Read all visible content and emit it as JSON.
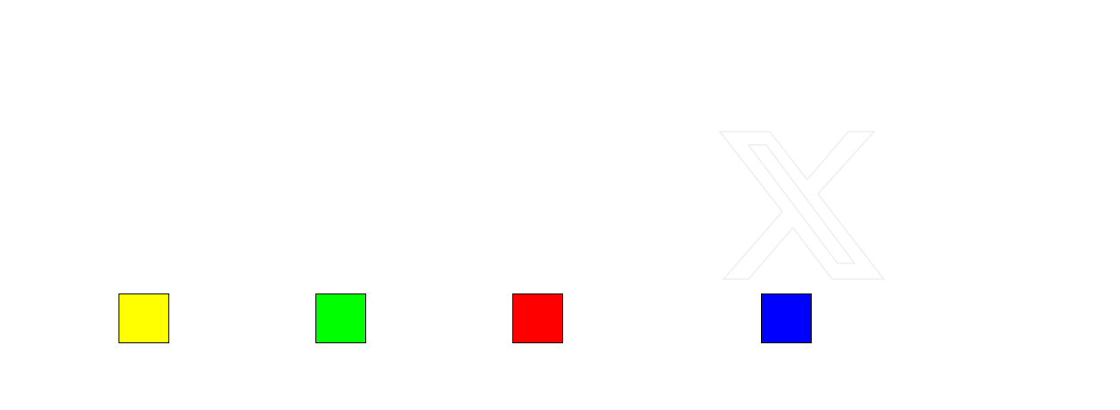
{
  "watermark": {
    "icon": "x-logo-icon",
    "color": "#eeeeee"
  },
  "swatches": [
    {
      "name": "yellow",
      "color": "#ffff00"
    },
    {
      "name": "green",
      "color": "#00ff00"
    },
    {
      "name": "red",
      "color": "#ff0000"
    },
    {
      "name": "blue",
      "color": "#0000ff"
    }
  ]
}
